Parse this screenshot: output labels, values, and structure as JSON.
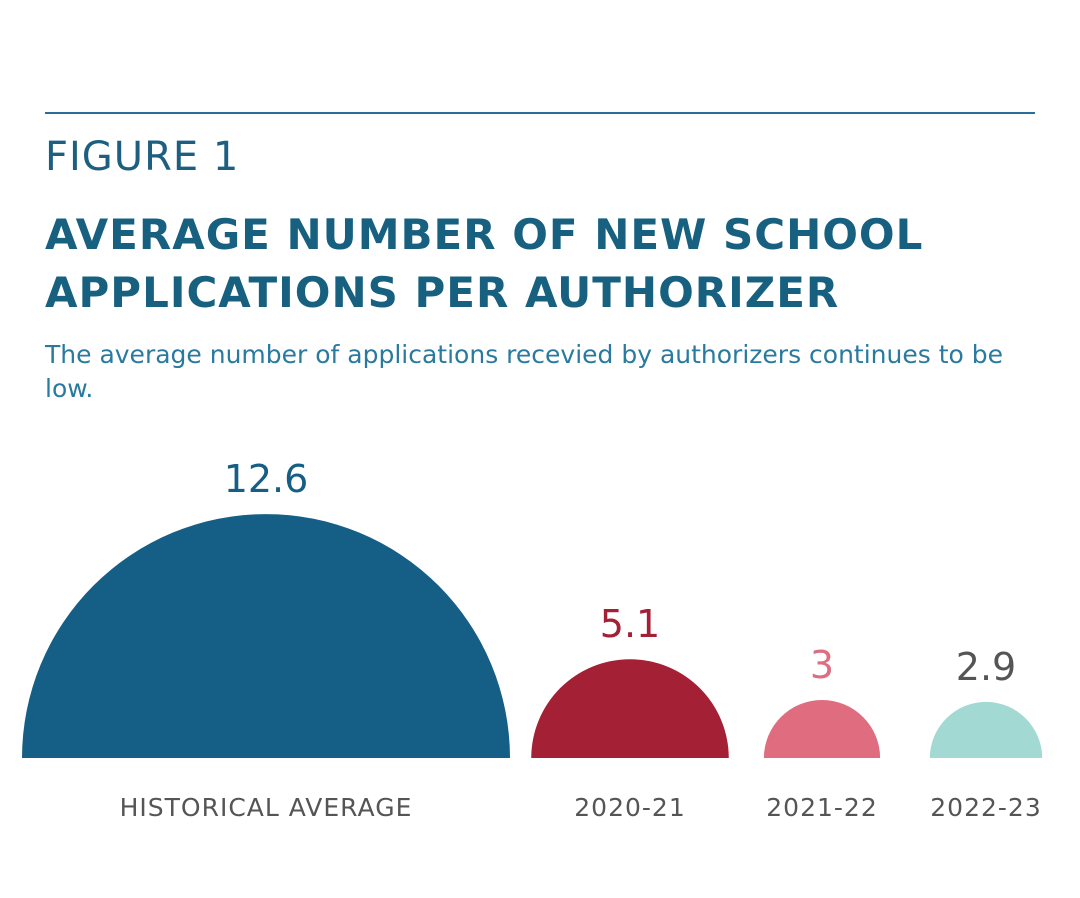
{
  "chart_data": {
    "type": "semicircle",
    "figure_label": "FIGURE 1",
    "title": "AVERAGE NUMBER OF NEW SCHOOL APPLICATIONS PER AUTHORIZER",
    "subtitle": "The average number of applications recevied by authorizers continues to be low.",
    "categories": [
      "HISTORICAL AVERAGE",
      "2020-21",
      "2021-22",
      "2022-23"
    ],
    "values": [
      12.6,
      5.1,
      3,
      2.9
    ],
    "colors": [
      "#155e85",
      "#a32035",
      "#e06c80",
      "#a3d9d3"
    ],
    "value_label_colors": [
      "#155e85",
      "#a32035",
      "#e06c80",
      "#555555"
    ]
  }
}
